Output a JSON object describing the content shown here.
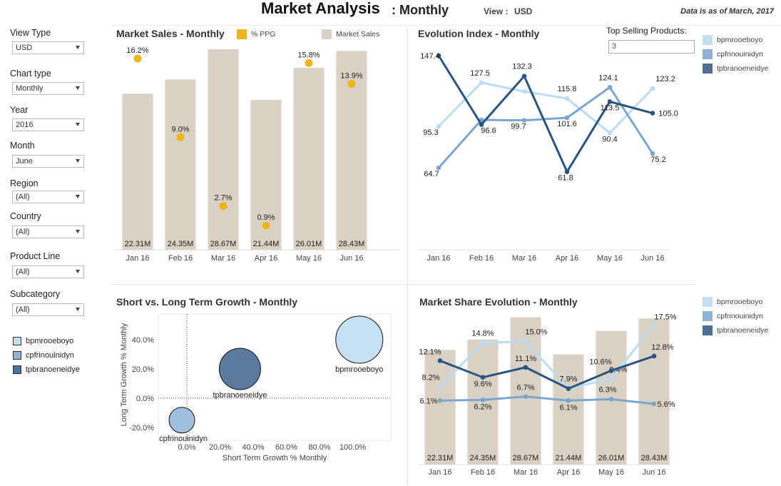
{
  "header": {
    "title": "Market Analysis",
    "subtitle": ": Monthly",
    "view_label": "View :",
    "view_value": "USD",
    "as_of": "Data is as of March, 2017"
  },
  "filters": [
    {
      "label": "View Type",
      "value": "USD"
    },
    {
      "label": "Chart type",
      "value": "Monthly"
    },
    {
      "label": "Year",
      "value": "2016"
    },
    {
      "label": "Month",
      "value": "June"
    },
    {
      "label": "Region",
      "value": "(All)"
    },
    {
      "label": "Country",
      "value": "(All)"
    },
    {
      "label": "Product Line",
      "value": "(All)"
    },
    {
      "label": "Subcategory",
      "value": "(All)"
    }
  ],
  "products_legend": [
    {
      "name": "bpmrooeboyo",
      "color": "#c5dff0"
    },
    {
      "name": "cpfrinouinidyn",
      "color": "#8fb3d3"
    },
    {
      "name": "tpbranoeneidye",
      "color": "#4f6e94"
    }
  ],
  "top_selling": {
    "label": "Top Selling Products:",
    "value": "3"
  },
  "colors": {
    "bar": "#d9d1c3",
    "ppg": "#f0b51b",
    "series": [
      "#bcdcf1",
      "#7aa6cf",
      "#2a5482"
    ]
  },
  "chart_data": [
    {
      "type": "bar",
      "title": "Market Sales - Monthly",
      "categories": [
        "Jan 16",
        "Feb 16",
        "Mar 16",
        "Apr 16",
        "May 16",
        "Jun 16"
      ],
      "series": [
        {
          "name": "Market Sales",
          "values": [
            22.31,
            24.35,
            28.67,
            21.44,
            26.01,
            28.43
          ],
          "labels": [
            "22.31M",
            "24.35M",
            "28.67M",
            "21.44M",
            "26.01M",
            "28.43M"
          ]
        },
        {
          "name": "% PPG",
          "values": [
            16.2,
            9.0,
            2.7,
            0.9,
            15.8,
            13.9
          ],
          "labels": [
            "16.2%",
            "9.0%",
            "2.7%",
            "0.9%",
            "15.8%",
            "13.9%"
          ]
        }
      ],
      "legend": [
        "% PPG",
        "Market Sales"
      ]
    },
    {
      "type": "line",
      "title": "Evolution Index - Monthly",
      "categories": [
        "Jan 16",
        "Feb 16",
        "Mar 16",
        "Apr 16",
        "May 16",
        "Jun 16"
      ],
      "series": [
        {
          "name": "bpmrooeboyo",
          "values": [
            95.3,
            127.5,
            121.0,
            115.8,
            90.4,
            123.2
          ],
          "labels": [
            "95.3",
            "127.5",
            "",
            "115.8",
            "90.4",
            "123.2"
          ]
        },
        {
          "name": "cpfrinouinidyn",
          "values": [
            64.7,
            100.0,
            99.7,
            101.6,
            124.1,
            75.2
          ],
          "labels": [
            "64.7",
            "",
            "99.7",
            "101.6",
            "124.1",
            "75.2"
          ]
        },
        {
          "name": "tpbranoeneidye",
          "values": [
            147.4,
            96.6,
            132.3,
            61.8,
            113.5,
            105.0
          ],
          "labels": [
            "147.4",
            "96.6",
            "132.3",
            "61.8",
            "113.5",
            "105.0"
          ]
        }
      ]
    },
    {
      "type": "scatter",
      "title": "Short vs. Long Term Growth - Monthly",
      "xlabel": "Short Term Growth % Monthly",
      "ylabel": "Long Term Growth % Monthly",
      "xticks": [
        "0.0%",
        "20.0%",
        "40.0%",
        "60.0%",
        "80.0%",
        "100.0%"
      ],
      "yticks": [
        "40.0%",
        "20.0%",
        "0.0%",
        "-20.0%"
      ],
      "xlim": [
        -17,
        122
      ],
      "ylim": [
        -26,
        52
      ],
      "points": [
        {
          "name": "bpmrooeboyo",
          "x": 104,
          "y": 40,
          "size": 1.0
        },
        {
          "name": "cpfrinouinidyn",
          "x": -3,
          "y": -15,
          "size": 0.55
        },
        {
          "name": "tpbranoeneidye",
          "x": 32,
          "y": 20,
          "size": 0.85
        }
      ]
    },
    {
      "type": "bar",
      "title": "Market Share Evolution - Monthly",
      "categories": [
        "Jan 16",
        "Feb 16",
        "Mar 16",
        "Apr 16",
        "May 16",
        "Jun 16"
      ],
      "bars": {
        "name": "Market Sales",
        "values": [
          22.31,
          24.35,
          28.67,
          21.44,
          26.01,
          28.43
        ],
        "labels": [
          "22.31M",
          "24.35M",
          "28.67M",
          "21.44M",
          "26.01M",
          "28.43M"
        ]
      },
      "series": [
        {
          "name": "bpmrooeboyo",
          "values": [
            8.2,
            14.8,
            15.0,
            7.9,
            9.4,
            17.5
          ],
          "labels": [
            "8.2%",
            "14.8%",
            "15.0%",
            "7.9%",
            "9.4%",
            "17.5%"
          ]
        },
        {
          "name": "cpfrinouinidyn",
          "values": [
            6.1,
            6.2,
            6.7,
            6.1,
            6.3,
            5.6
          ],
          "labels": [
            "6.1%",
            "6.2%",
            "6.7%",
            "6.1%",
            "6.3%",
            "5.6%"
          ]
        },
        {
          "name": "tpbranoeneidye",
          "values": [
            12.1,
            9.6,
            11.1,
            7.9,
            10.6,
            12.8
          ],
          "labels": [
            "12.1%",
            "9.6%",
            "11.1%",
            "",
            "10.6%",
            "12.8%"
          ]
        }
      ]
    }
  ]
}
